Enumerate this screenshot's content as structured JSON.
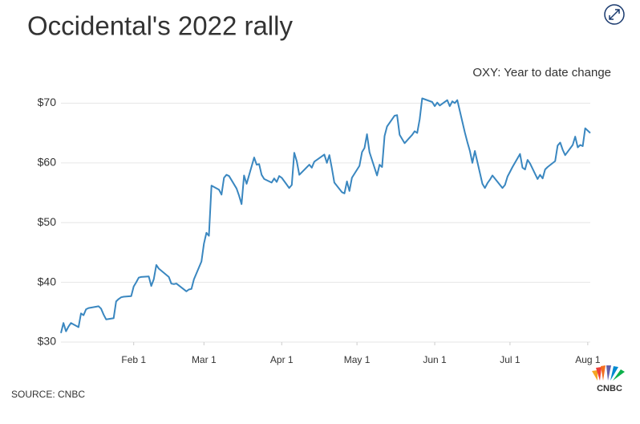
{
  "chart_data": {
    "type": "line",
    "title": "Occidental's 2022 rally",
    "subtitle": "OXY: Year to date change",
    "source": "SOURCE: CNBC",
    "logo_text": "CNBC",
    "color": "#3a87c0",
    "grid": true,
    "x": [
      3,
      4,
      5,
      6,
      7,
      10,
      11,
      12,
      13,
      14,
      18,
      19,
      20,
      21,
      24,
      25,
      26,
      27,
      28,
      31,
      32,
      33,
      34,
      35,
      38,
      39,
      40,
      41,
      42,
      46,
      47,
      48,
      49,
      53,
      54,
      55,
      56,
      59,
      60,
      61,
      62,
      63,
      66,
      67,
      68,
      69,
      70,
      73,
      74,
      75,
      76,
      77,
      80,
      81,
      82,
      83,
      84,
      87,
      88,
      89,
      90,
      91,
      94,
      95,
      96,
      97,
      98,
      102,
      103,
      104,
      105,
      108,
      109,
      110,
      111,
      112,
      115,
      116,
      117,
      118,
      119,
      122,
      123,
      124,
      125,
      126,
      129,
      130,
      131,
      132,
      133,
      136,
      137,
      138,
      139,
      140,
      143,
      144,
      145,
      146,
      147,
      151,
      152,
      153,
      154,
      157,
      158,
      159,
      160,
      161,
      164,
      165,
      166,
      167,
      168,
      171,
      172,
      173,
      174,
      175,
      179,
      180,
      181,
      182,
      183,
      186,
      187,
      188,
      189,
      190,
      193,
      194,
      195,
      196,
      197,
      200,
      201,
      202,
      203,
      204,
      207,
      208,
      209,
      210,
      211,
      212,
      214
    ],
    "values": [
      31.5,
      33.2,
      31.8,
      32.6,
      33.2,
      32.5,
      34.8,
      34.5,
      35.5,
      35.7,
      36.0,
      35.6,
      34.6,
      33.8,
      34.0,
      36.8,
      37.2,
      37.5,
      37.6,
      37.7,
      39.3,
      40.0,
      40.8,
      40.9,
      41.0,
      39.4,
      40.5,
      42.9,
      42.3,
      40.9,
      39.8,
      39.7,
      39.8,
      38.5,
      38.8,
      38.9,
      40.5,
      43.5,
      46.5,
      48.3,
      47.8,
      56.2,
      55.5,
      54.7,
      57.5,
      58.0,
      57.8,
      55.7,
      54.5,
      53.1,
      57.9,
      56.5,
      60.9,
      59.7,
      59.8,
      58.0,
      57.3,
      56.7,
      57.4,
      56.8,
      57.8,
      57.5,
      55.8,
      56.3,
      61.7,
      60.3,
      58.0,
      59.7,
      59.2,
      60.2,
      60.5,
      61.4,
      60.0,
      61.3,
      59.1,
      56.7,
      55.1,
      54.9,
      56.9,
      55.3,
      57.5,
      59.5,
      61.8,
      62.5,
      64.8,
      61.8,
      57.9,
      59.7,
      59.3,
      64.5,
      66.1,
      67.9,
      68.0,
      64.7,
      64.0,
      63.3,
      64.7,
      65.3,
      65.0,
      67.3,
      70.8,
      70.2,
      69.5,
      70.1,
      69.6,
      70.5,
      69.5,
      70.3,
      70.0,
      70.5,
      65.1,
      63.5,
      62.0,
      60.0,
      62.0,
      56.5,
      55.8,
      56.6,
      57.2,
      57.9,
      55.8,
      56.3,
      57.7,
      58.5,
      59.3,
      61.5,
      59.2,
      58.9,
      60.5,
      59.9,
      57.3,
      58.0,
      57.4,
      58.9,
      59.3,
      60.3,
      62.9,
      63.4,
      62.2,
      61.3,
      63.0,
      64.4,
      62.6,
      63.0,
      62.8,
      65.8,
      65.0
    ],
    "xlim": [
      3,
      214
    ],
    "xticks": [
      {
        "value": 32,
        "label": "Feb 1"
      },
      {
        "value": 60,
        "label": "Mar 1"
      },
      {
        "value": 91,
        "label": "Apr 1"
      },
      {
        "value": 121,
        "label": "May 1"
      },
      {
        "value": 152,
        "label": "Jun 1"
      },
      {
        "value": 182,
        "label": "Jul 1"
      },
      {
        "value": 213,
        "label": "Aug 1"
      }
    ],
    "ylim": [
      30,
      71
    ],
    "yticks": [
      {
        "value": 30,
        "label": "$30"
      },
      {
        "value": 40,
        "label": "$40"
      },
      {
        "value": 50,
        "label": "$50"
      },
      {
        "value": 60,
        "label": "$60"
      },
      {
        "value": 70,
        "label": "$70"
      }
    ]
  }
}
